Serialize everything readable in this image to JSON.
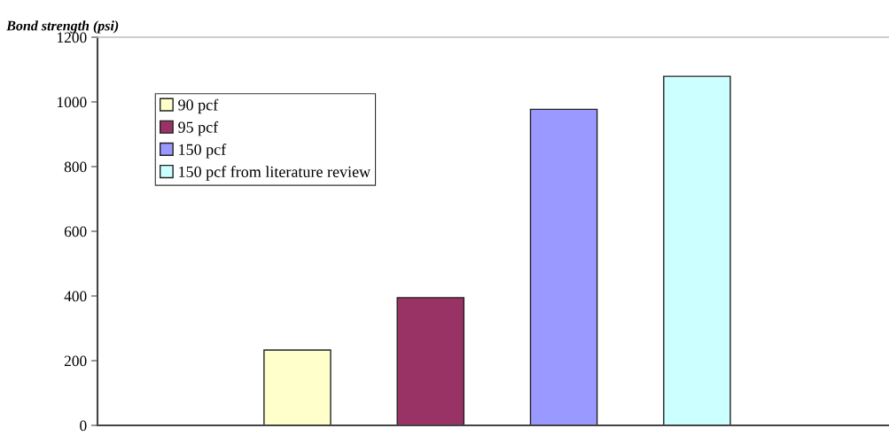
{
  "chart_data": {
    "type": "bar",
    "ylabel": "Bond strength (psi)",
    "categories": [
      null
    ],
    "series": [
      {
        "name": "90 pcf",
        "color": "#ffffcc",
        "values": [
          233
        ]
      },
      {
        "name": "95 pcf",
        "color": "#993366",
        "values": [
          395
        ]
      },
      {
        "name": "150 pcf",
        "color": "#9999ff",
        "values": [
          977
        ]
      },
      {
        "name": "150 pcf from literature review",
        "color": "#ccffff",
        "values": [
          1079
        ]
      }
    ],
    "ylim": [
      0,
      1200
    ],
    "yticks": [
      0,
      200,
      400,
      600,
      800,
      1000,
      1200
    ],
    "grid": false,
    "legend": "top left"
  }
}
